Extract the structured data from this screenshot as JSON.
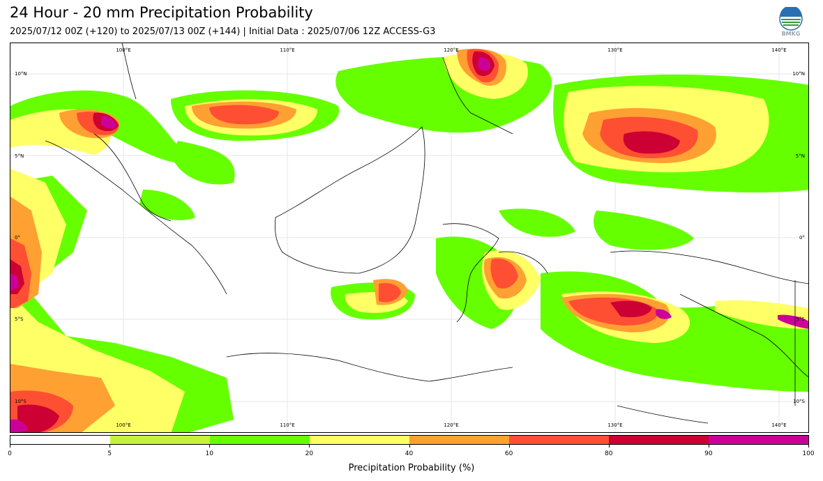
{
  "header": {
    "title": "24 Hour - 20 mm Precipitation Probability",
    "subtitle": "2025/07/12 00Z (+120) to 2025/07/13 00Z (+144) | Initial Data : 2025/07/06 12Z ACCESS-G3",
    "logo_text": "BMKG"
  },
  "map": {
    "lon_labels_top": [
      "100°E",
      "110°E",
      "120°E",
      "130°E",
      "140°E"
    ],
    "lon_labels_bottom": [
      "100°E",
      "110°E",
      "120°E",
      "130°E",
      "140°E"
    ],
    "lat_labels_left": [
      "10°N",
      "5°N",
      "0°",
      "5°S",
      "10°S"
    ],
    "lat_labels_right": [
      "10°N",
      "5°N",
      "0°",
      "5°S",
      "10°S"
    ]
  },
  "colorbar": {
    "title": "Precipitation Probability (%)",
    "ticks": [
      "0",
      "5",
      "10",
      "20",
      "40",
      "60",
      "80",
      "90",
      "100"
    ],
    "colors": [
      "#ffffff",
      "#c6f23a",
      "#66ff00",
      "#ffff66",
      "#ffa033",
      "#ff4f33",
      "#cc0033",
      "#cc0099"
    ]
  }
}
